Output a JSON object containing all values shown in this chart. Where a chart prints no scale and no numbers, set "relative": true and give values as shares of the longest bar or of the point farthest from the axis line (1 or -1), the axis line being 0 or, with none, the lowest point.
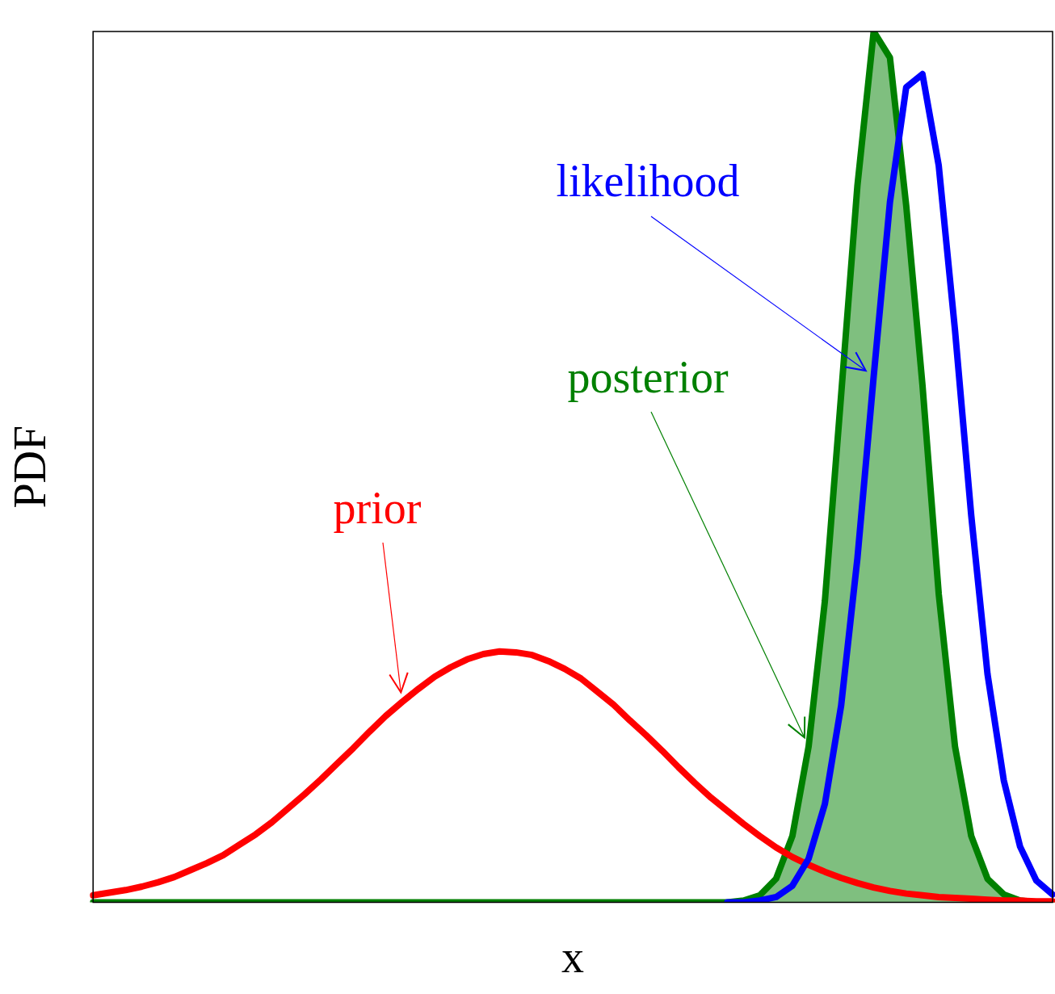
{
  "chart_data": {
    "type": "line",
    "xlabel": "x",
    "ylabel": "PDF",
    "relative": true,
    "grid": false,
    "legend": false,
    "categories": [
      null,
      null,
      null,
      null,
      null,
      null,
      null,
      null,
      null,
      null,
      null,
      null,
      null,
      null,
      null,
      null,
      null,
      null,
      null,
      null,
      null,
      null,
      null,
      null,
      null,
      null,
      null,
      null,
      null,
      null,
      null,
      null,
      null,
      null,
      null,
      null,
      null,
      null,
      null,
      null,
      null,
      null,
      null,
      null,
      null,
      null,
      null,
      null,
      null,
      null,
      null,
      null,
      null,
      null,
      null,
      null,
      null,
      null,
      null,
      null
    ],
    "series": [
      {
        "name": "prior",
        "type": "line",
        "color": "#ff0000",
        "values": [
          0.008,
          0.011,
          0.014,
          0.018,
          0.023,
          0.029,
          0.037,
          0.045,
          0.054,
          0.066,
          0.078,
          0.092,
          0.108,
          0.124,
          0.141,
          0.159,
          0.177,
          0.196,
          0.214,
          0.23,
          0.245,
          0.259,
          0.27,
          0.279,
          0.285,
          0.288,
          0.287,
          0.284,
          0.277,
          0.268,
          0.257,
          0.242,
          0.227,
          0.209,
          0.192,
          0.174,
          0.155,
          0.137,
          0.12,
          0.105,
          0.09,
          0.076,
          0.063,
          0.052,
          0.043,
          0.035,
          0.028,
          0.022,
          0.017,
          0.013,
          0.01,
          0.008,
          0.006,
          0.005,
          0.004,
          0.003,
          0.002,
          0.002,
          0.001,
          0.001
        ]
      },
      {
        "name": "posterior",
        "type": "area",
        "color": "#008000",
        "values": [
          0,
          0,
          0,
          0,
          0,
          0,
          0,
          0,
          0,
          0,
          0,
          0,
          0,
          0,
          0,
          0,
          0,
          0,
          0,
          0,
          0,
          0,
          0,
          0,
          0,
          0,
          0,
          0,
          0,
          0,
          0,
          0,
          0,
          0,
          0,
          0,
          0,
          0,
          0,
          0,
          0.002,
          0.008,
          0.027,
          0.076,
          0.179,
          0.346,
          0.583,
          0.823,
          1,
          0.97,
          0.8,
          0.594,
          0.354,
          0.179,
          0.076,
          0.027,
          0.009,
          0.002,
          0,
          0
        ]
      },
      {
        "name": "likelihood",
        "type": "line",
        "color": "#0000ff",
        "values": [
          null,
          null,
          null,
          null,
          null,
          null,
          null,
          null,
          null,
          null,
          null,
          null,
          null,
          null,
          null,
          null,
          null,
          null,
          null,
          null,
          null,
          null,
          null,
          null,
          null,
          null,
          null,
          null,
          null,
          null,
          null,
          null,
          null,
          null,
          null,
          null,
          null,
          null,
          null,
          0,
          0,
          0.002,
          0.006,
          0.019,
          0.05,
          0.113,
          0.226,
          0.395,
          0.604,
          0.804,
          0.936,
          0.951,
          0.846,
          0.657,
          0.444,
          0.262,
          0.14,
          0.064,
          0.025,
          0.009
        ]
      }
    ]
  }
}
